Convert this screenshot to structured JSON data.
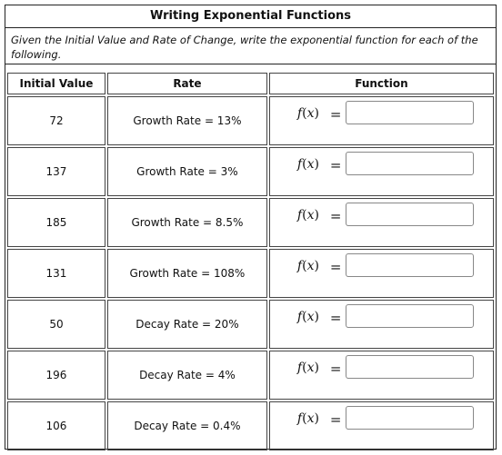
{
  "title": "Writing Exponential Functions",
  "instructions": "Given the Initial Value and Rate of Change, write the exponential function for each of the following.",
  "columns": {
    "initial": "Initial Value",
    "rate": "Rate",
    "function": "Function"
  },
  "function_label": {
    "f": "f",
    "open": "(",
    "x": "x",
    "close": ")",
    "equals": "="
  },
  "rows": [
    {
      "initial": "72",
      "rate": "Growth Rate = 13%",
      "answer": ""
    },
    {
      "initial": "137",
      "rate": "Growth Rate = 3%",
      "answer": ""
    },
    {
      "initial": "185",
      "rate": "Growth Rate = 8.5%",
      "answer": ""
    },
    {
      "initial": "131",
      "rate": "Growth Rate = 108%",
      "answer": ""
    },
    {
      "initial": "50",
      "rate": "Decay Rate = 20%",
      "answer": ""
    },
    {
      "initial": "196",
      "rate": "Decay Rate = 4%",
      "answer": ""
    },
    {
      "initial": "106",
      "rate": "Decay Rate = 0.4%",
      "answer": ""
    }
  ]
}
